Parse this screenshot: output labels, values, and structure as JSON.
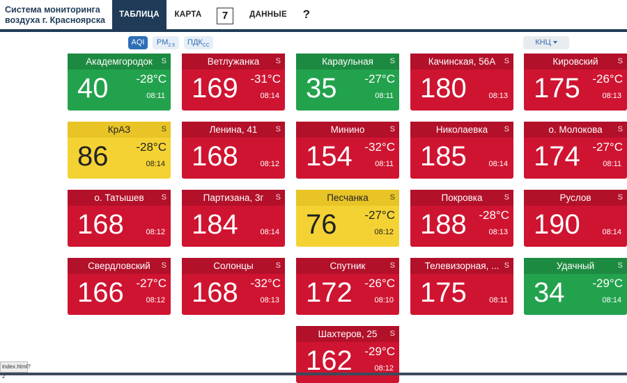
{
  "header": {
    "brand": "Система мониторинга воздуха г. Красноярска",
    "tabs": [
      "ТАБЛИЦА",
      "КАРТА",
      "ДАННЫЕ",
      "?"
    ],
    "count": "7"
  },
  "toolbar": {
    "modes": [
      "AQI",
      "PM",
      "ПДК"
    ],
    "mode_subs": [
      "2.5",
      "СС"
    ],
    "sort_label": "КНЦ"
  },
  "colors": {
    "red": "#cf1431",
    "green": "#23a24d",
    "yellow": "#f4d234",
    "navy": "#1f3b57"
  },
  "stations": [
    {
      "name": "Академгородок",
      "aqi": "40",
      "temp": "-28°C",
      "time": "08:11",
      "badge": "S",
      "level": "green"
    },
    {
      "name": "Ветлужанка",
      "aqi": "169",
      "temp": "-31°C",
      "time": "08:14",
      "badge": "S",
      "level": "red"
    },
    {
      "name": "Караульная",
      "aqi": "35",
      "temp": "-27°C",
      "time": "08:11",
      "badge": "S",
      "level": "green"
    },
    {
      "name": "Качинская, 56А",
      "aqi": "180",
      "temp": "",
      "time": "08:13",
      "badge": "S",
      "level": "red"
    },
    {
      "name": "Кировский",
      "aqi": "175",
      "temp": "-26°C",
      "time": "08:13",
      "badge": "S",
      "level": "red"
    },
    {
      "name": "КрАЗ",
      "aqi": "86",
      "temp": "-28°C",
      "time": "08:14",
      "badge": "S",
      "level": "yellow"
    },
    {
      "name": "Ленина, 41",
      "aqi": "168",
      "temp": "",
      "time": "08:12",
      "badge": "S",
      "level": "red"
    },
    {
      "name": "Минино",
      "aqi": "154",
      "temp": "-32°C",
      "time": "08:11",
      "badge": "S",
      "level": "red"
    },
    {
      "name": "Николаевка",
      "aqi": "185",
      "temp": "",
      "time": "08:14",
      "badge": "S",
      "level": "red"
    },
    {
      "name": "о. Молокова",
      "aqi": "174",
      "temp": "-27°C",
      "time": "08:11",
      "badge": "S",
      "level": "red"
    },
    {
      "name": "о. Татышев",
      "aqi": "168",
      "temp": "",
      "time": "08:12",
      "badge": "S",
      "level": "red"
    },
    {
      "name": "Партизана, 3г",
      "aqi": "184",
      "temp": "",
      "time": "08:14",
      "badge": "S",
      "level": "red"
    },
    {
      "name": "Песчанка",
      "aqi": "76",
      "temp": "-27°C",
      "time": "08:12",
      "badge": "S",
      "level": "yellow"
    },
    {
      "name": "Покровка",
      "aqi": "188",
      "temp": "-28°C",
      "time": "08:13",
      "badge": "S",
      "level": "red"
    },
    {
      "name": "Руслов",
      "aqi": "190",
      "temp": "",
      "time": "08:14",
      "badge": "S",
      "level": "red"
    },
    {
      "name": "Свердловский",
      "aqi": "166",
      "temp": "-27°C",
      "time": "08:12",
      "badge": "S",
      "level": "red"
    },
    {
      "name": "Солонцы",
      "aqi": "168",
      "temp": "-32°C",
      "time": "08:13",
      "badge": "S",
      "level": "red"
    },
    {
      "name": "Спутник",
      "aqi": "172",
      "temp": "-26°C",
      "time": "08:10",
      "badge": "S",
      "level": "red"
    },
    {
      "name": "Телевизорная, ...",
      "aqi": "175",
      "temp": "",
      "time": "08:11",
      "badge": "S",
      "level": "red"
    },
    {
      "name": "Удачный",
      "aqi": "34",
      "temp": "-29°C",
      "time": "08:14",
      "badge": "S",
      "level": "green"
    },
    {
      "name": "Шахтеров, 25",
      "aqi": "162",
      "temp": "-29°C",
      "time": "08:12",
      "badge": "S",
      "level": "red"
    }
  ],
  "statusbar": "index.html?2"
}
